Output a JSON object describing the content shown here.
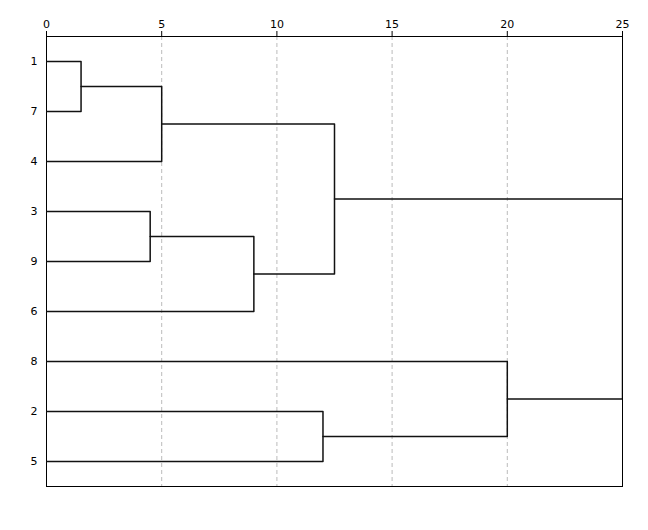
{
  "chart_data": {
    "type": "dendrogram",
    "labels": [
      "1",
      "7",
      "4",
      "3",
      "9",
      "6",
      "2",
      "5",
      "8"
    ],
    "linkage": [
      [
        0,
        1,
        1.5
      ],
      [
        9,
        2,
        5.0
      ],
      [
        3,
        4,
        4.5
      ],
      [
        11,
        5,
        9.0
      ],
      [
        10,
        12,
        12.5
      ],
      [
        6,
        7,
        12.0
      ],
      [
        8,
        14,
        20.0
      ],
      [
        13,
        15,
        25.0
      ]
    ],
    "color": "#111111",
    "xlim": [
      0,
      25
    ],
    "xticks": [
      0,
      5,
      10,
      15,
      20,
      25
    ],
    "grid": true
  }
}
